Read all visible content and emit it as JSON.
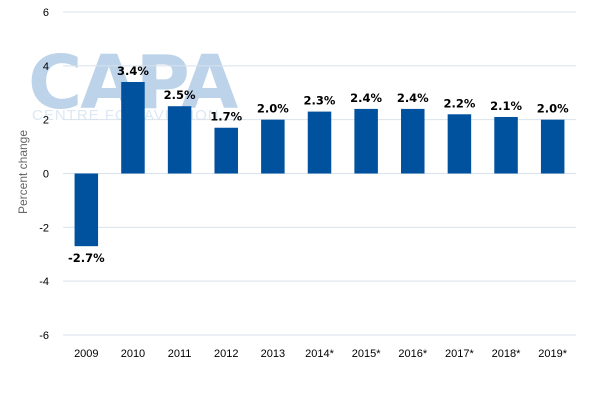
{
  "watermark": {
    "main": "CAPA",
    "sub": "CENTRE FOR AVIATION"
  },
  "chart_data": {
    "type": "bar",
    "title": "",
    "xlabel": "",
    "ylabel": "Percent change",
    "categories": [
      "2009",
      "2010",
      "2011",
      "2012",
      "2013",
      "2014*",
      "2015*",
      "2016*",
      "2017*",
      "2018*",
      "2019*"
    ],
    "values": [
      -2.7,
      3.4,
      2.5,
      1.7,
      2.0,
      2.3,
      2.4,
      2.4,
      2.2,
      2.1,
      2.0
    ],
    "data_labels": [
      "-2.7%",
      "3.4%",
      "2.5%",
      "1.7%",
      "2.0%",
      "2.3%",
      "2.4%",
      "2.4%",
      "2.2%",
      "2.1%",
      "2.0%"
    ],
    "ylim": [
      -6,
      6
    ],
    "yticks": [
      -6,
      -4,
      -2,
      0,
      2,
      4,
      6
    ],
    "grid": true,
    "bar_color": "#00519e",
    "grid_color": "#d9e2ec"
  }
}
